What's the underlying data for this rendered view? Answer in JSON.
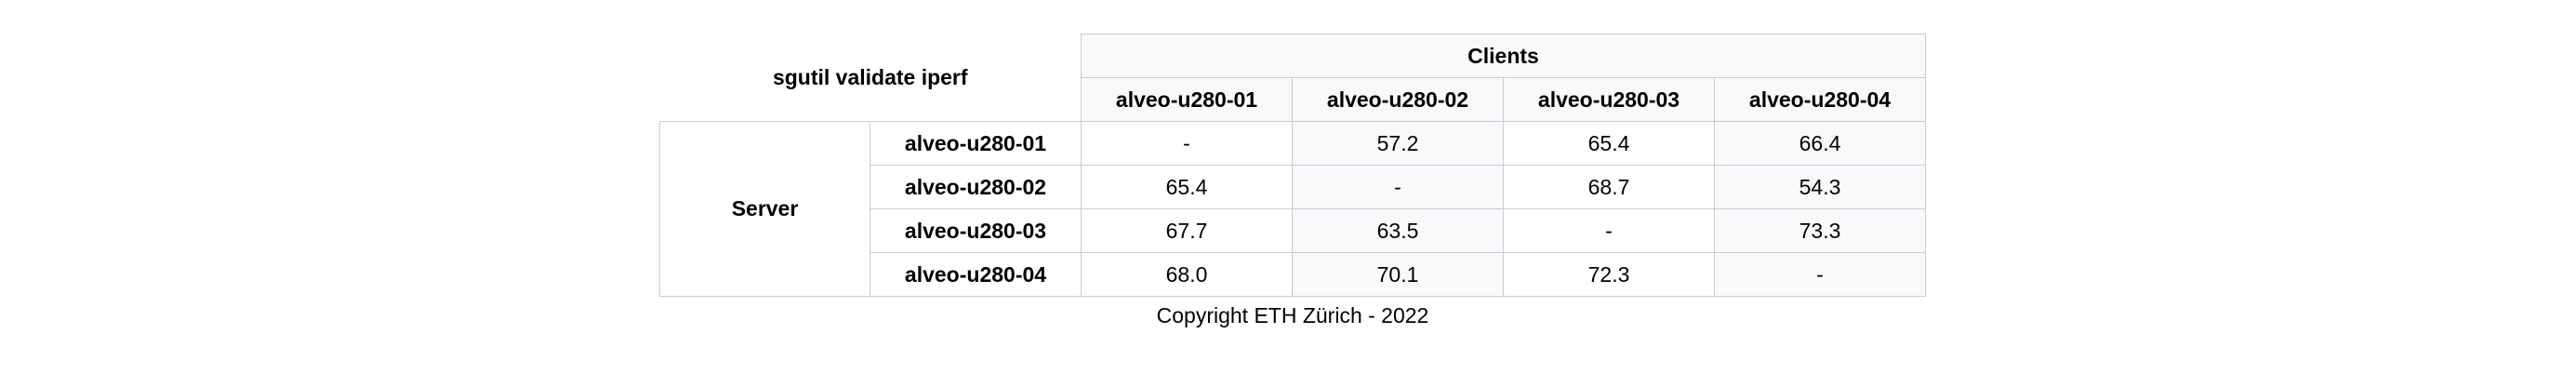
{
  "table": {
    "caption_corner": "sgutil validate iperf",
    "column_group": "Clients",
    "row_group": "Server",
    "columns": [
      "alveo-u280-01",
      "alveo-u280-02",
      "alveo-u280-03",
      "alveo-u280-04"
    ],
    "rows": [
      {
        "label": "alveo-u280-01",
        "values": [
          "-",
          "57.2",
          "65.4",
          "66.4"
        ]
      },
      {
        "label": "alveo-u280-02",
        "values": [
          "65.4",
          "-",
          "68.7",
          "54.3"
        ]
      },
      {
        "label": "alveo-u280-03",
        "values": [
          "67.7",
          "63.5",
          "-",
          "73.3"
        ]
      },
      {
        "label": "alveo-u280-04",
        "values": [
          "68.0",
          "70.1",
          "72.3",
          "-"
        ]
      }
    ]
  },
  "footer": {
    "copyright": "Copyright ETH Zürich - 2022"
  }
}
